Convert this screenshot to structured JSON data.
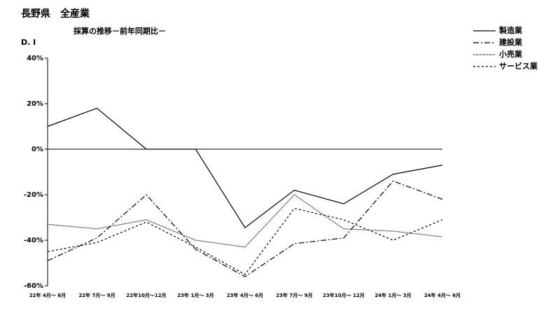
{
  "chart_data": {
    "type": "line",
    "title": "長野県　全産業",
    "subtitle": "採算の推移－前年同期比－",
    "y_label": "D. I",
    "categories": [
      "22年 4月～ 6月",
      "22年 7月～ 9月",
      "22年10月～12月",
      "23年 1月～ 3月",
      "23年 4月～ 6月",
      "23年 7月～ 9月",
      "23年10月～ 12月",
      "24年 1月～ 3月",
      "24年 4月～ 6月"
    ],
    "series": [
      {
        "name": "製造業",
        "color": "#000000",
        "dash": "",
        "values": [
          10,
          18,
          0,
          0,
          -34.5,
          -18,
          -24,
          -11,
          -7
        ]
      },
      {
        "name": "建設業",
        "color": "#000000",
        "dash": "8 3 2 3",
        "values": [
          -49,
          -39,
          -20,
          -44,
          -56,
          -41.5,
          -39,
          -14,
          -22
        ]
      },
      {
        "name": "小売業",
        "color": "#000000",
        "dash": "1 1",
        "values": [
          -33,
          -35,
          -31,
          -40,
          -43,
          -20,
          -35,
          -36,
          -38.5
        ]
      },
      {
        "name": "サービス業",
        "color": "#000000",
        "dash": "3 3",
        "values": [
          -45,
          -41,
          -32,
          -43,
          -55,
          -26,
          -31,
          -40,
          -31
        ]
      }
    ],
    "ylim": [
      -60,
      40
    ],
    "yticks": [
      {
        "value": -60,
        "label": "-60%"
      },
      {
        "value": -40,
        "label": "-40%"
      },
      {
        "value": -20,
        "label": "-20%"
      },
      {
        "value": 0,
        "label": "0%"
      },
      {
        "value": 20,
        "label": "20%"
      },
      {
        "value": 40,
        "label": "40%"
      }
    ]
  }
}
